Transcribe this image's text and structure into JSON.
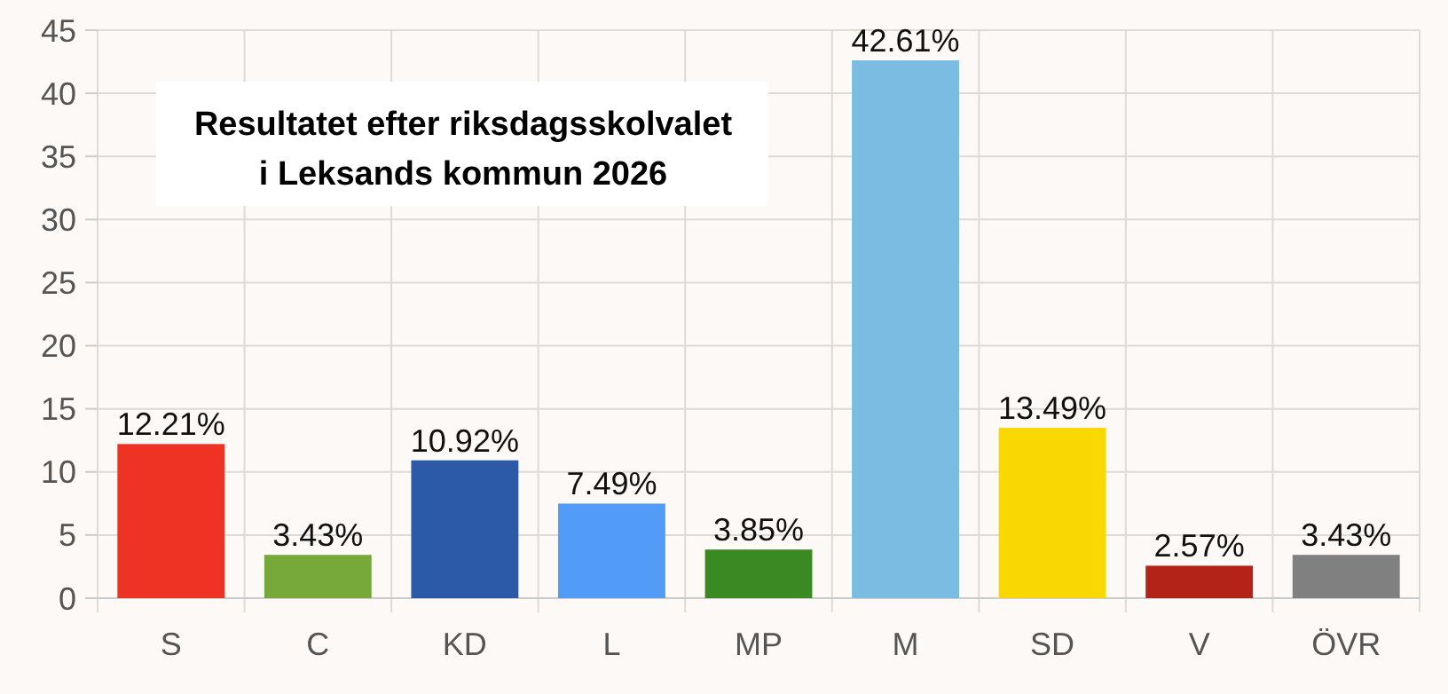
{
  "chart_data": {
    "type": "bar",
    "title": "Resultatet efter riksdagsskolvalet\ni Leksands kommun 2026",
    "categories": [
      "S",
      "C",
      "KD",
      "L",
      "MP",
      "M",
      "SD",
      "V",
      "ÖVR"
    ],
    "values": [
      12.21,
      3.43,
      10.92,
      7.49,
      3.85,
      42.61,
      13.49,
      2.57,
      3.43
    ],
    "colors": [
      "#ee3224",
      "#76a83a",
      "#2c5aa8",
      "#529bf7",
      "#3a8a24",
      "#7bbde2",
      "#f8d800",
      "#b42318",
      "#808080"
    ],
    "value_labels": [
      "12.21%",
      "3.43%",
      "10.92%",
      "7.49%",
      "3.85%",
      "42.61%",
      "13.49%",
      "2.57%",
      "3.43%"
    ],
    "ylim": [
      0,
      45
    ],
    "yticks": [
      0,
      5,
      10,
      15,
      20,
      25,
      30,
      35,
      40,
      45
    ],
    "grid": true
  }
}
